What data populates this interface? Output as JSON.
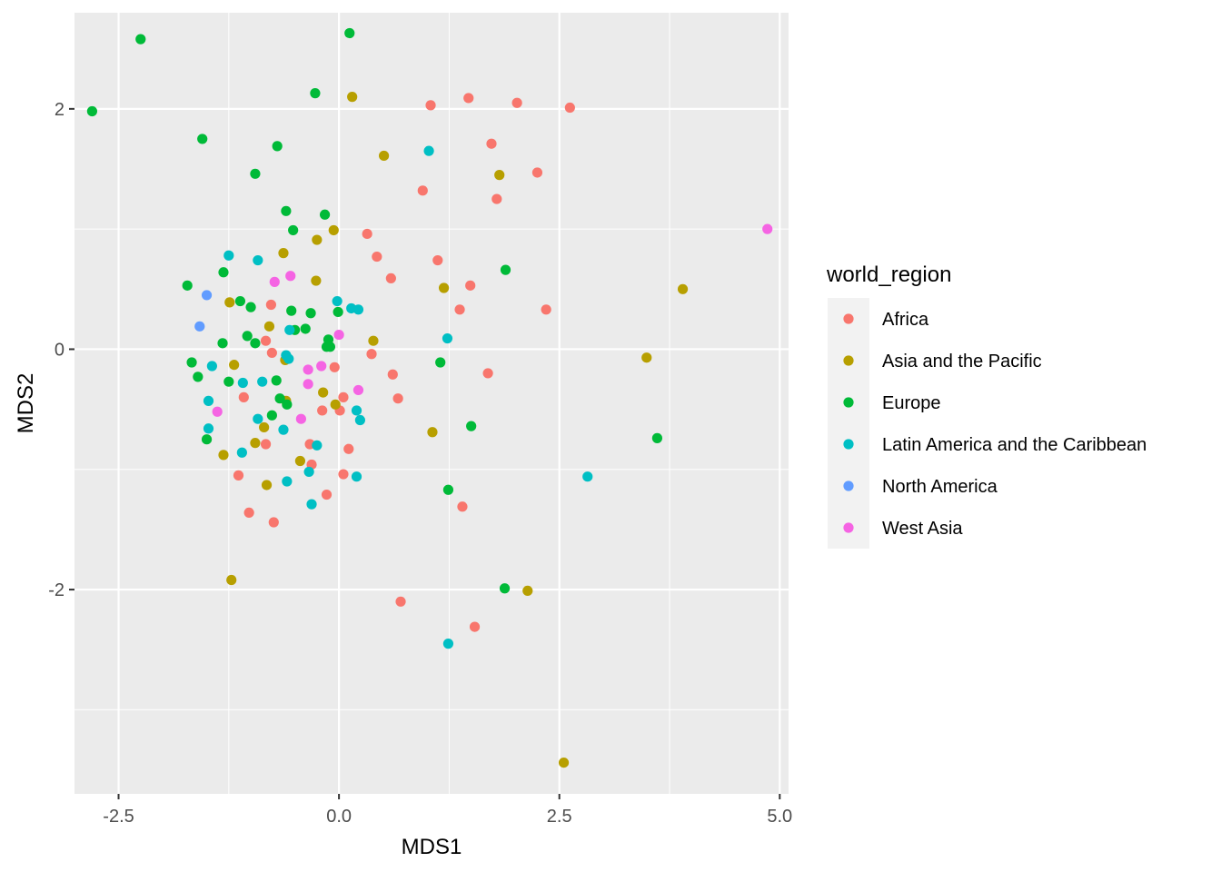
{
  "chart_data": {
    "type": "scatter",
    "xlabel": "MDS1",
    "ylabel": "MDS2",
    "xlim": [
      -3.0,
      5.1
    ],
    "ylim": [
      -3.7,
      2.8
    ],
    "xticks": [
      -2.5,
      0.0,
      2.5,
      5.0
    ],
    "xtick_labels": [
      "-2.5",
      "0.0",
      "2.5",
      "5.0"
    ],
    "yticks": [
      2,
      0,
      -2
    ],
    "ytick_labels": [
      "2",
      "0",
      "-2"
    ],
    "grid": true,
    "legend_position": "right",
    "legend_title": "world_region",
    "series": [
      {
        "name": "Africa",
        "color": "#F8766D",
        "points": [
          [
            1.04,
            2.03
          ],
          [
            1.47,
            2.09
          ],
          [
            2.02,
            2.05
          ],
          [
            2.62,
            2.01
          ],
          [
            1.73,
            1.71
          ],
          [
            2.25,
            1.47
          ],
          [
            1.79,
            1.25
          ],
          [
            0.95,
            1.32
          ],
          [
            0.32,
            0.96
          ],
          [
            0.43,
            0.77
          ],
          [
            1.12,
            0.74
          ],
          [
            0.59,
            0.59
          ],
          [
            1.49,
            0.53
          ],
          [
            1.37,
            0.33
          ],
          [
            2.35,
            0.33
          ],
          [
            -0.77,
            0.37
          ],
          [
            -0.83,
            0.07
          ],
          [
            -0.76,
            -0.03
          ],
          [
            0.37,
            -0.04
          ],
          [
            -0.05,
            -0.15
          ],
          [
            0.61,
            -0.21
          ],
          [
            1.69,
            -0.2
          ],
          [
            0.67,
            -0.41
          ],
          [
            -1.08,
            -0.4
          ],
          [
            0.05,
            -0.4
          ],
          [
            -0.19,
            -0.51
          ],
          [
            0.01,
            -0.51
          ],
          [
            -0.33,
            -0.79
          ],
          [
            -0.83,
            -0.79
          ],
          [
            0.11,
            -0.83
          ],
          [
            -0.31,
            -0.96
          ],
          [
            -1.14,
            -1.05
          ],
          [
            0.05,
            -1.04
          ],
          [
            -0.14,
            -1.21
          ],
          [
            1.4,
            -1.31
          ],
          [
            -1.02,
            -1.36
          ],
          [
            -0.74,
            -1.44
          ],
          [
            0.7,
            -2.1
          ],
          [
            1.54,
            -2.31
          ]
        ]
      },
      {
        "name": "Asia and the Pacific",
        "color": "#B79F00",
        "points": [
          [
            0.15,
            2.1
          ],
          [
            0.51,
            1.61
          ],
          [
            1.82,
            1.45
          ],
          [
            -0.25,
            0.91
          ],
          [
            -0.06,
            0.99
          ],
          [
            -0.63,
            0.8
          ],
          [
            -0.26,
            0.57
          ],
          [
            1.19,
            0.51
          ],
          [
            3.9,
            0.5
          ],
          [
            -1.24,
            0.39
          ],
          [
            -0.79,
            0.19
          ],
          [
            0.39,
            0.07
          ],
          [
            3.49,
            -0.07
          ],
          [
            -1.19,
            -0.13
          ],
          [
            -0.61,
            -0.09
          ],
          [
            -0.18,
            -0.36
          ],
          [
            -0.6,
            -0.43
          ],
          [
            -0.04,
            -0.46
          ],
          [
            -0.85,
            -0.65
          ],
          [
            1.06,
            -0.69
          ],
          [
            -0.95,
            -0.78
          ],
          [
            -1.31,
            -0.88
          ],
          [
            -0.44,
            -0.93
          ],
          [
            -0.82,
            -1.13
          ],
          [
            2.14,
            -2.01
          ],
          [
            -1.22,
            -1.92
          ],
          [
            2.55,
            -3.44
          ]
        ]
      },
      {
        "name": "Europe",
        "color": "#00BA38",
        "points": [
          [
            -2.8,
            1.98
          ],
          [
            -2.25,
            2.58
          ],
          [
            0.12,
            2.63
          ],
          [
            -0.27,
            2.13
          ],
          [
            -1.55,
            1.75
          ],
          [
            -0.7,
            1.69
          ],
          [
            -0.95,
            1.46
          ],
          [
            -0.6,
            1.15
          ],
          [
            -0.16,
            1.12
          ],
          [
            -0.52,
            0.99
          ],
          [
            1.89,
            0.66
          ],
          [
            -1.72,
            0.53
          ],
          [
            -1.31,
            0.64
          ],
          [
            -1.12,
            0.4
          ],
          [
            -1.0,
            0.35
          ],
          [
            -0.54,
            0.32
          ],
          [
            -0.32,
            0.3
          ],
          [
            -0.01,
            0.31
          ],
          [
            -0.5,
            0.16
          ],
          [
            -0.38,
            0.17
          ],
          [
            -1.32,
            0.05
          ],
          [
            -1.04,
            0.11
          ],
          [
            -0.95,
            0.05
          ],
          [
            -0.12,
            0.08
          ],
          [
            -0.1,
            0.02
          ],
          [
            -0.14,
            0.02
          ],
          [
            -1.67,
            -0.11
          ],
          [
            1.15,
            -0.11
          ],
          [
            -1.6,
            -0.23
          ],
          [
            -1.25,
            -0.27
          ],
          [
            -0.71,
            -0.26
          ],
          [
            -0.67,
            -0.41
          ],
          [
            -0.59,
            -0.46
          ],
          [
            -0.76,
            -0.55
          ],
          [
            1.5,
            -0.64
          ],
          [
            3.61,
            -0.74
          ],
          [
            -1.5,
            -0.75
          ],
          [
            1.24,
            -1.17
          ],
          [
            1.88,
            -1.99
          ]
        ]
      },
      {
        "name": "Latin America and the Caribbean",
        "color": "#00BFC4",
        "points": [
          [
            1.02,
            1.65
          ],
          [
            -1.25,
            0.78
          ],
          [
            -0.92,
            0.74
          ],
          [
            -0.02,
            0.4
          ],
          [
            0.14,
            0.34
          ],
          [
            0.22,
            0.33
          ],
          [
            -0.56,
            0.16
          ],
          [
            1.23,
            0.09
          ],
          [
            -0.6,
            -0.05
          ],
          [
            -0.57,
            -0.08
          ],
          [
            -1.44,
            -0.14
          ],
          [
            -0.87,
            -0.27
          ],
          [
            -1.09,
            -0.28
          ],
          [
            -1.48,
            -0.43
          ],
          [
            0.2,
            -0.51
          ],
          [
            -0.92,
            -0.58
          ],
          [
            0.24,
            -0.59
          ],
          [
            -0.63,
            -0.67
          ],
          [
            -1.48,
            -0.66
          ],
          [
            -0.25,
            -0.8
          ],
          [
            -1.1,
            -0.86
          ],
          [
            -0.34,
            -1.02
          ],
          [
            0.2,
            -1.06
          ],
          [
            -0.59,
            -1.1
          ],
          [
            -0.31,
            -1.29
          ],
          [
            2.82,
            -1.06
          ],
          [
            1.24,
            -2.45
          ]
        ]
      },
      {
        "name": "North America",
        "color": "#619CFF",
        "points": [
          [
            -1.5,
            0.45
          ],
          [
            -1.58,
            0.19
          ]
        ]
      },
      {
        "name": "West Asia",
        "color": "#F564E3",
        "points": [
          [
            4.86,
            1.0
          ],
          [
            -0.55,
            0.61
          ],
          [
            -0.73,
            0.56
          ],
          [
            0.0,
            0.12
          ],
          [
            -0.2,
            -0.14
          ],
          [
            -0.35,
            -0.17
          ],
          [
            -0.35,
            -0.29
          ],
          [
            0.22,
            -0.34
          ],
          [
            -1.38,
            -0.52
          ],
          [
            -0.43,
            -0.58
          ]
        ]
      }
    ]
  }
}
